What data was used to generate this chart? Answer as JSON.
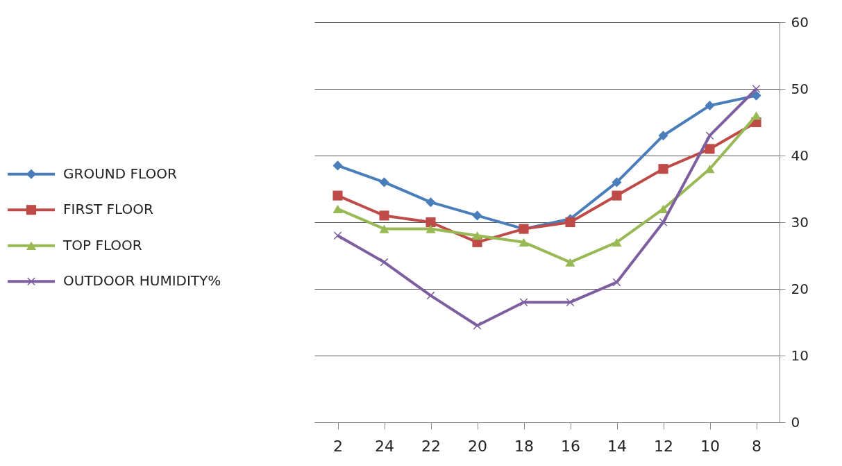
{
  "chart_data": {
    "type": "line",
    "categories": [
      "2",
      "24",
      "22",
      "20",
      "18",
      "16",
      "14",
      "12",
      "10",
      "8"
    ],
    "ylim": [
      0,
      60
    ],
    "yticks": [
      0,
      10,
      20,
      30,
      40,
      50,
      60
    ],
    "grid": "y",
    "legend": "left",
    "series": [
      {
        "name": "GROUND FLOOR",
        "color": "#4a7ebb",
        "marker": "diamond",
        "values": [
          38.5,
          36,
          33,
          31,
          29,
          30.5,
          36,
          43,
          47.5,
          49
        ]
      },
      {
        "name": "FIRST FLOOR",
        "color": "#be4b48",
        "marker": "square",
        "values": [
          34,
          31,
          30,
          27,
          29,
          30,
          34,
          38,
          41,
          45
        ]
      },
      {
        "name": "TOP FLOOR",
        "color": "#98b954",
        "marker": "triangle",
        "values": [
          32,
          29,
          29,
          28,
          27,
          24,
          27,
          32,
          38,
          46
        ]
      },
      {
        "name": "OUTDOOR HUMIDITY%",
        "color": "#7d5fa0",
        "marker": "cross",
        "values": [
          28,
          24,
          19,
          14.5,
          18,
          18,
          21,
          30,
          43,
          50
        ]
      }
    ]
  }
}
